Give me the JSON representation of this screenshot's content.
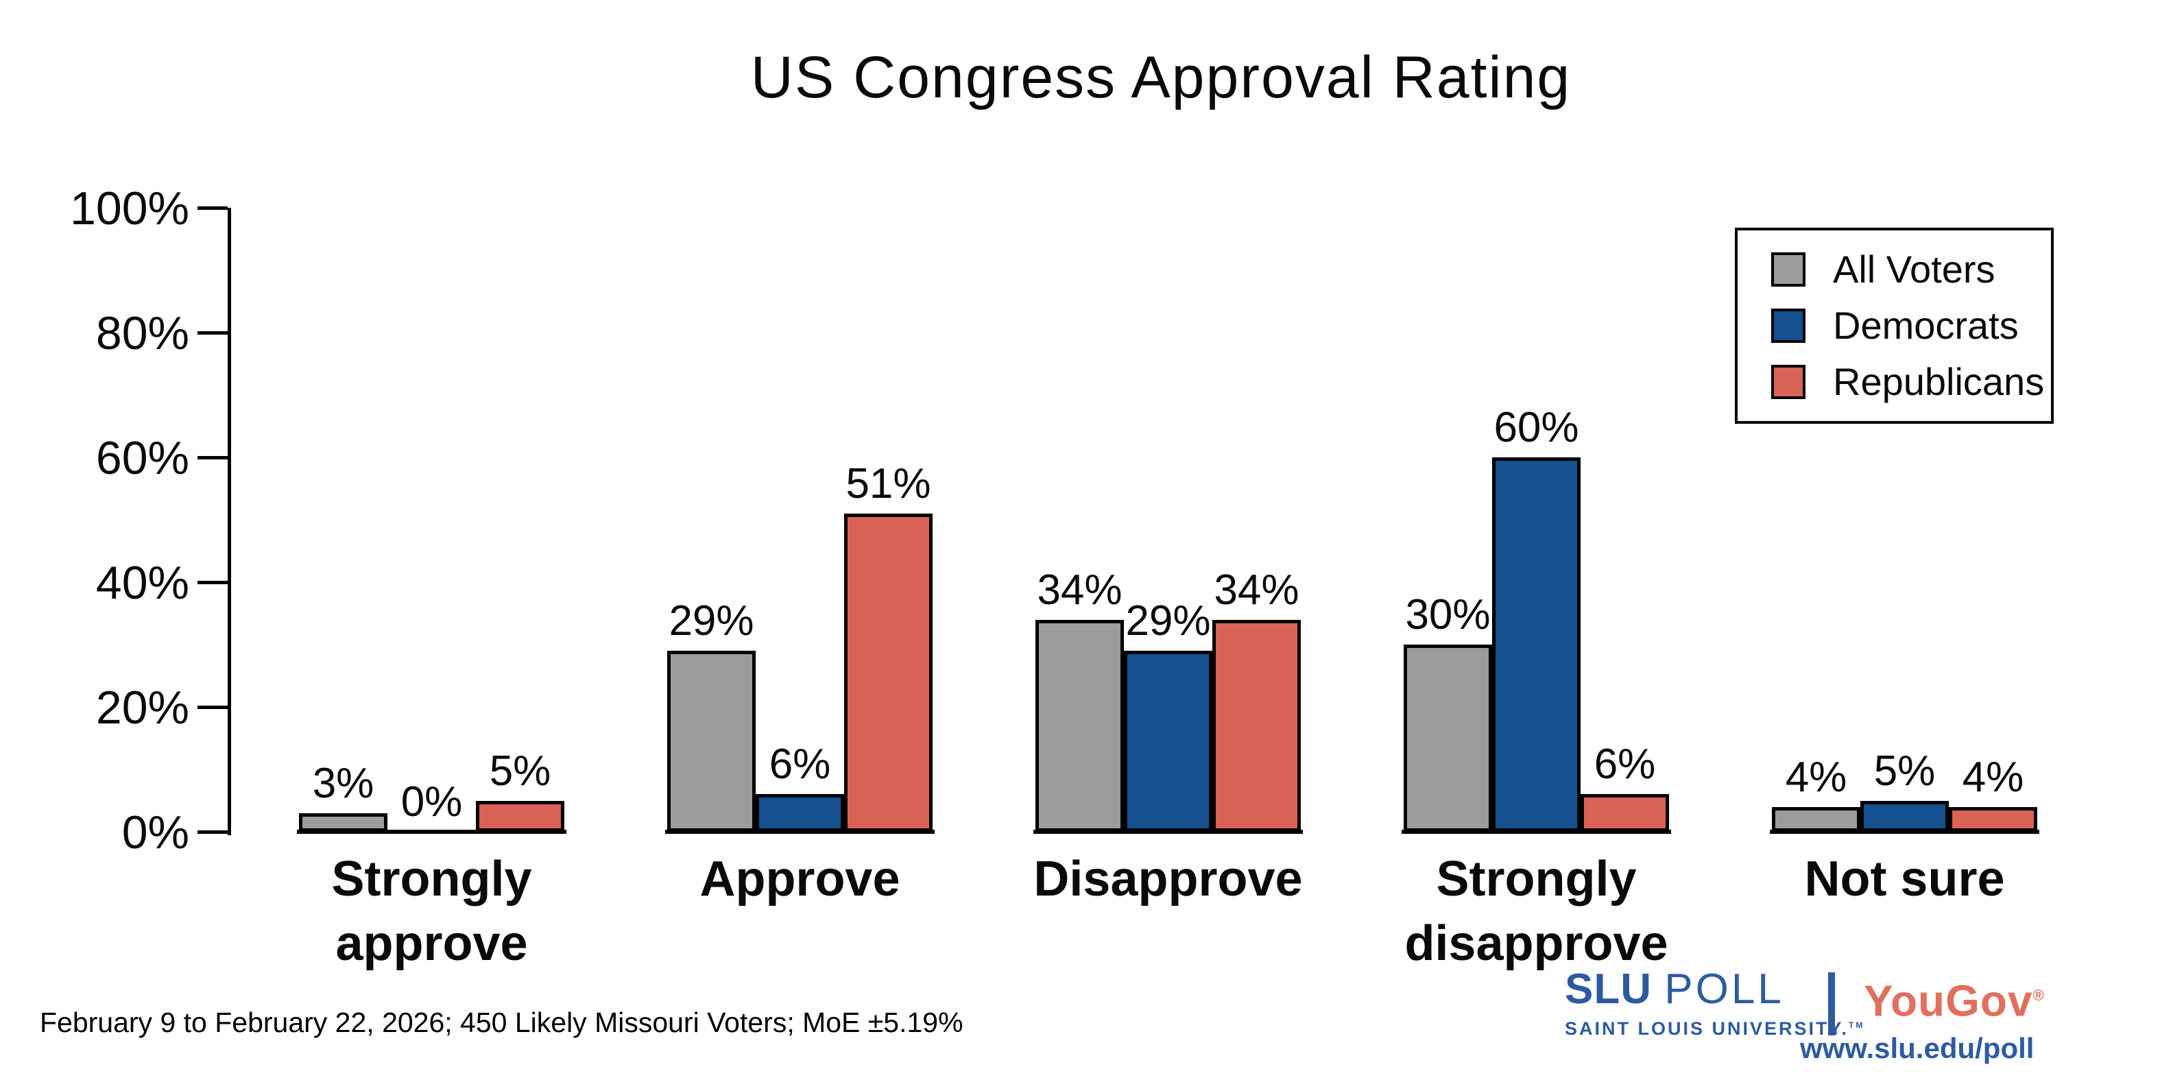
{
  "title": "US Congress Approval Rating",
  "chart_data": {
    "type": "bar",
    "title": "US Congress Approval Rating",
    "categories": [
      "Strongly approve",
      "Approve",
      "Disapprove",
      "Strongly disapprove",
      "Not sure"
    ],
    "category_lines": [
      [
        "Strongly",
        "approve"
      ],
      [
        "Approve"
      ],
      [
        "Disapprove"
      ],
      [
        "Strongly",
        "disapprove"
      ],
      [
        "Not sure"
      ]
    ],
    "series": [
      {
        "name": "All Voters",
        "color": "#9C9C9C",
        "values": [
          3,
          29,
          34,
          30,
          4
        ]
      },
      {
        "name": "Democrats",
        "color": "#15508F",
        "values": [
          0,
          6,
          29,
          60,
          5
        ]
      },
      {
        "name": "Republicans",
        "color": "#D96357",
        "values": [
          5,
          51,
          34,
          6,
          4
        ]
      }
    ],
    "value_labels": [
      [
        "3%",
        "0%",
        "5%"
      ],
      [
        "29%",
        "6%",
        "51%"
      ],
      [
        "34%",
        "29%",
        "34%"
      ],
      [
        "30%",
        "60%",
        "6%"
      ],
      [
        "4%",
        "5%",
        "4%"
      ]
    ],
    "ylim": [
      0,
      100
    ],
    "yticks": [
      "0%",
      "20%",
      "40%",
      "60%",
      "80%",
      "100%"
    ],
    "ytick_values": [
      0,
      20,
      40,
      60,
      80,
      100
    ],
    "grid": false,
    "legend_position": "top-right",
    "bar_outline_color": "#000000"
  },
  "legend": {
    "items": [
      "All Voters",
      "Democrats",
      "Republicans"
    ]
  },
  "footer": {
    "note": "February 9 to February 22, 2026; 450 Likely Missouri Voters; MoE ±5.19%"
  },
  "branding": {
    "slu_word": "SLU",
    "poll_word": "POLL",
    "slu_subtitle": "SAINT LOUIS UNIVERSITY.",
    "slu_tm": "TM",
    "partner": "YouGov",
    "partner_reg": "®",
    "url": "www.slu.edu/poll",
    "slu_color": "#2D5B9E",
    "partner_color": "#E0705C"
  }
}
